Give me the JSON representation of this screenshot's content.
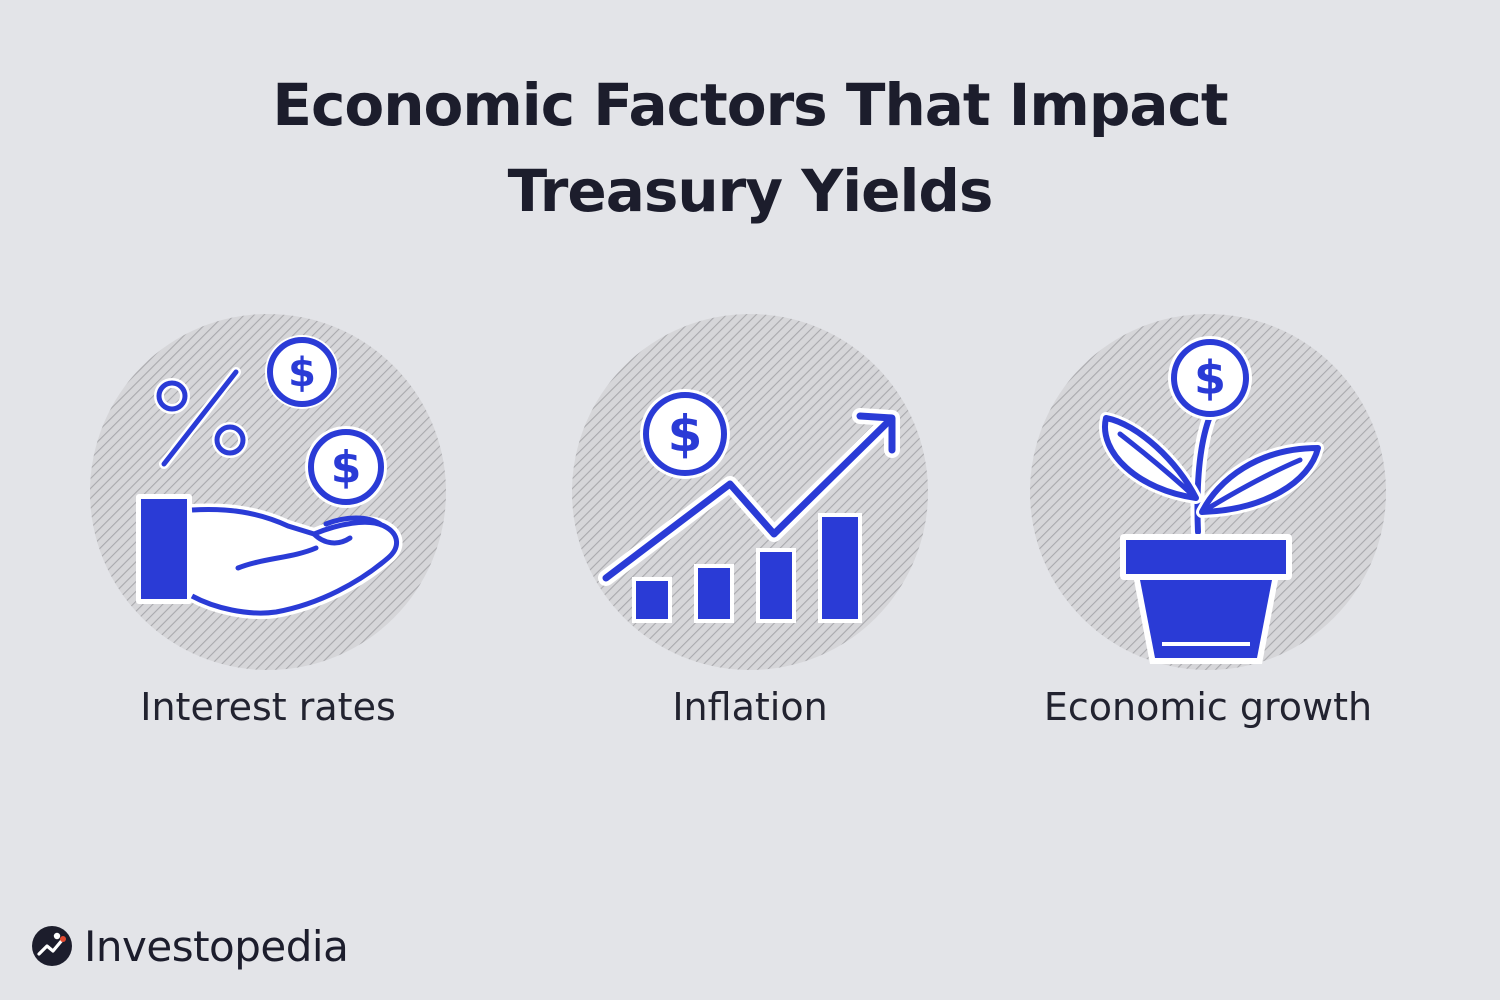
{
  "title": {
    "line1": "Economic Factors That Impact",
    "line2": "Treasury Yields"
  },
  "colors": {
    "background": "#e3e4e8",
    "accent_blue": "#2a3bd6",
    "text_dark": "#1c1d2c",
    "circle_hatch": "#b9b9bd"
  },
  "factors": [
    {
      "label": "Interest rates",
      "icon": "hand-with-coins-and-percent-icon"
    },
    {
      "label": "Inflation",
      "icon": "rising-chart-with-coin-icon"
    },
    {
      "label": "Economic growth",
      "icon": "plant-pot-with-coin-icon"
    }
  ],
  "brand": {
    "name": "Investopedia",
    "icon": "investopedia-logo-icon"
  }
}
